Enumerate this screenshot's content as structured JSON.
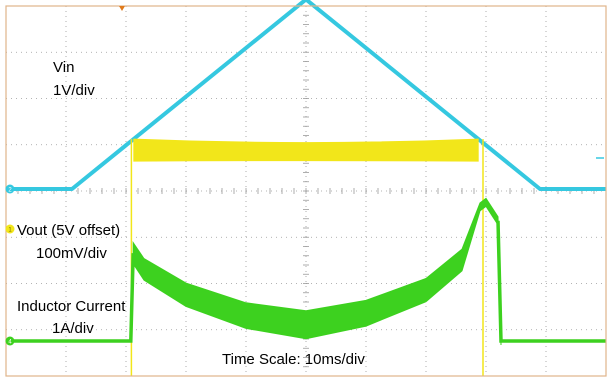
{
  "chart_data": {
    "type": "line",
    "title": "",
    "xlabel": "Time Scale: 10ms/div",
    "grid": true,
    "x_unit": "ms",
    "x_range": [
      0,
      100
    ],
    "series": [
      {
        "name": "Vin",
        "scale_label": "1V/div",
        "unit": "V",
        "color": "#35c8e0",
        "x": [
          0,
          11,
          50,
          89,
          100
        ],
        "y": [
          0.0,
          0.0,
          4.1,
          0.0,
          0.0
        ]
      },
      {
        "name": "Vout (5V offset)",
        "scale_label": "100mV/div",
        "unit": "mV",
        "color": "#f2e61a",
        "x": [
          0,
          20.9,
          21.3,
          50,
          78.7,
          79.5,
          82,
          100
        ],
        "y": [
          -1,
          -1,
          1.9,
          1.75,
          1.9,
          -1,
          -1,
          -1
        ]
      },
      {
        "name": "Inductor Current",
        "scale_label": "1A/div",
        "unit": "A",
        "color": "#3dd11f",
        "x": [
          0,
          20.8,
          21.2,
          23,
          30,
          40,
          50,
          60,
          70,
          76,
          79,
          80,
          82,
          82.5,
          100
        ],
        "y": [
          0.0,
          0.0,
          1.9,
          1.55,
          1.0,
          0.55,
          0.35,
          0.6,
          1.1,
          1.75,
          2.9,
          3.0,
          2.6,
          0.0,
          0.0
        ]
      }
    ],
    "labels": {
      "vin_name": "Vin",
      "vin_scale": "1V/div",
      "vout_name": "Vout (5V offset)",
      "vout_scale": "100mV/div",
      "il_name": "Inductor Current",
      "il_scale": "1A/div",
      "time_scale": "Time Scale: 10ms/div"
    },
    "channel_markers": [
      "2",
      "1",
      "4"
    ],
    "colors": {
      "vin": "#35c8e0",
      "vout": "#f2e61a",
      "inductor_current": "#3dd11f",
      "frame": "#e0b48a",
      "grid": "#9a9a9a",
      "trigger_marker": "#e07a1a"
    }
  }
}
